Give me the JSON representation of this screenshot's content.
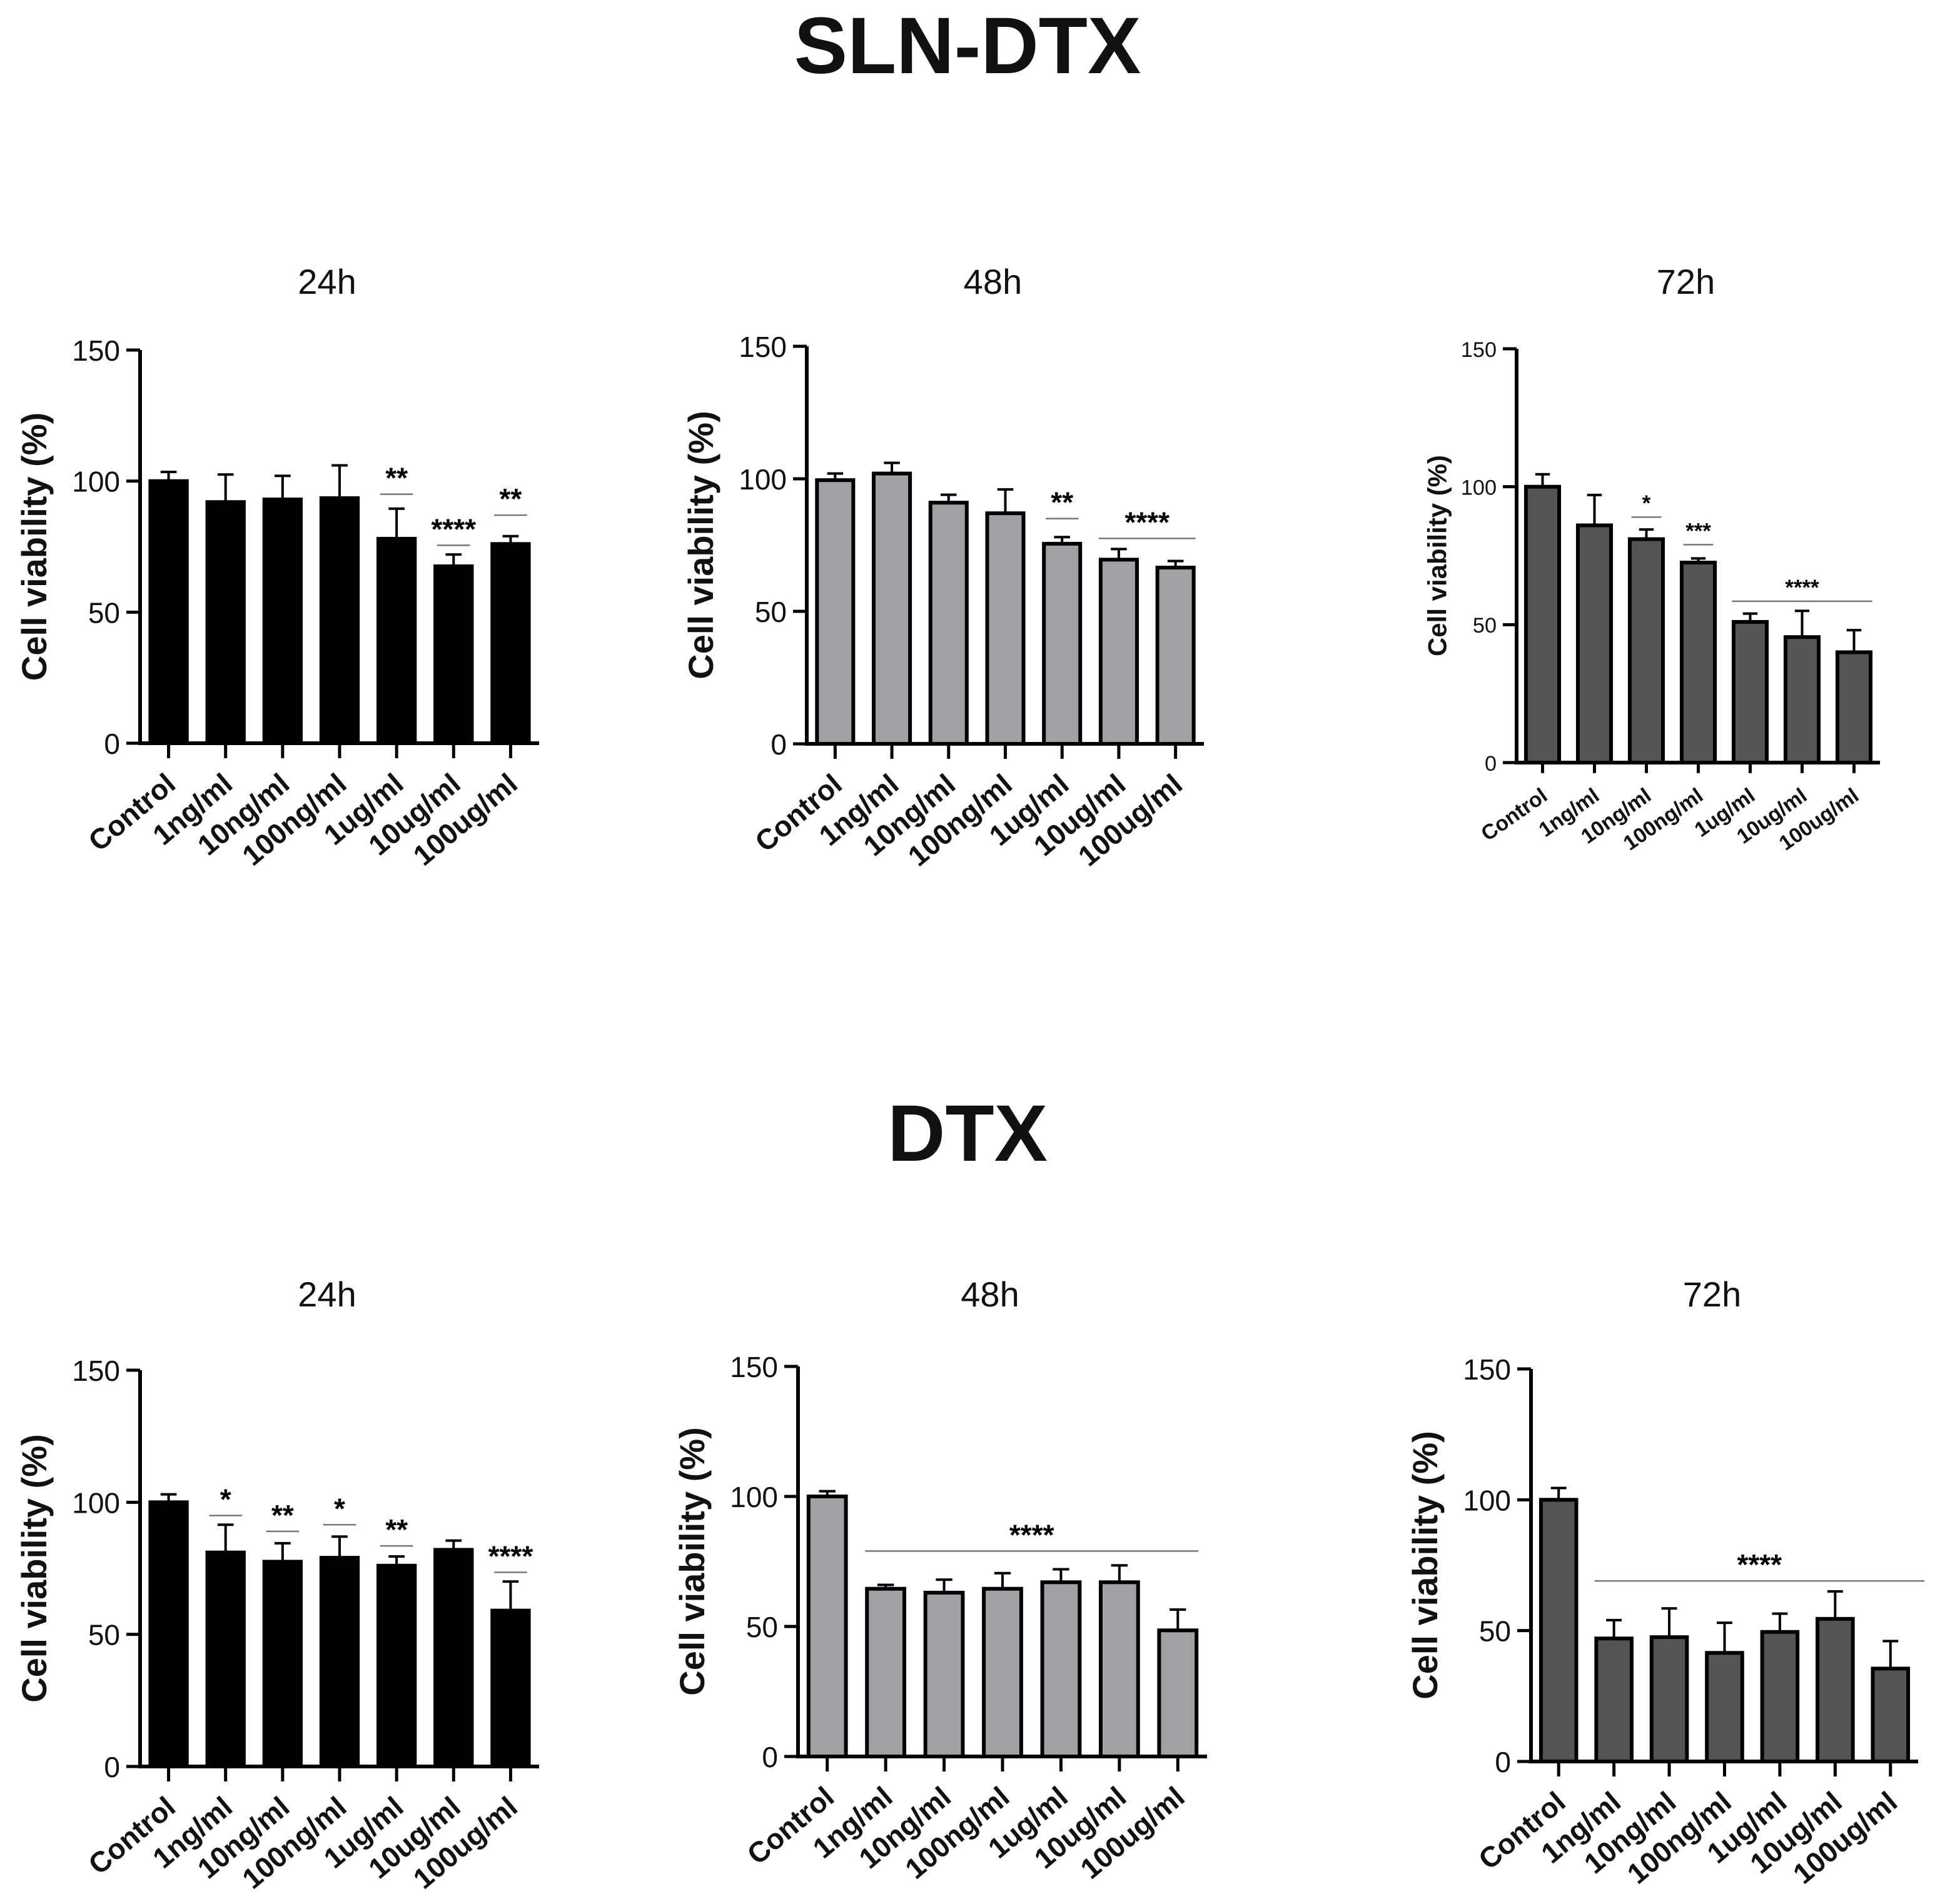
{
  "sections": [
    {
      "title": "SLN-DTX"
    },
    {
      "title": "DTX"
    }
  ],
  "chart_data": [
    {
      "type": "bar",
      "section": "SLN-DTX",
      "title": "24h",
      "ylabel": "Cell viability  (%)",
      "ylim": [
        0,
        150
      ],
      "yticks": [
        0,
        50,
        100,
        150
      ],
      "categories": [
        "Control",
        "1ng/ml",
        "10ng/ml",
        "100ng/ml",
        "1ug/ml",
        "10ug/ml",
        "100ug/ml"
      ],
      "values": [
        100,
        92,
        93,
        93.5,
        78,
        67.5,
        76
      ],
      "errors": [
        3.5,
        10.5,
        9,
        12.5,
        11.5,
        4.5,
        3
      ],
      "color": "#000000",
      "annotations": [
        {
          "text": "**",
          "from": 4,
          "to": 4,
          "y": 95
        },
        {
          "text": "****",
          "from": 5,
          "to": 5,
          "y": 75.5
        },
        {
          "text": "**",
          "from": 6,
          "to": 6,
          "y": 87
        }
      ]
    },
    {
      "type": "bar",
      "section": "SLN-DTX",
      "title": "48h",
      "ylabel": "Cell viability  (%)",
      "ylim": [
        0,
        150
      ],
      "yticks": [
        0,
        50,
        100,
        150
      ],
      "categories": [
        "Control",
        "1ng/ml",
        "10ng/ml",
        "100ng/ml",
        "1ug/ml",
        "10ug/ml",
        "100ug/ml"
      ],
      "values": [
        99.5,
        102,
        91,
        87,
        75.5,
        69.5,
        66.5
      ],
      "errors": [
        2.5,
        4,
        3,
        9,
        2.5,
        4,
        2.5
      ],
      "color": "#a0a0a5",
      "annotations": [
        {
          "text": "**",
          "from": 4,
          "to": 4,
          "y": 85
        },
        {
          "text": "****",
          "from": 5,
          "to": 6,
          "y": 77.5
        }
      ]
    },
    {
      "type": "bar",
      "section": "SLN-DTX",
      "title": "72h",
      "ylabel": "Cell viability  (%)",
      "ylim": [
        0,
        150
      ],
      "yticks": [
        0,
        50,
        100,
        150
      ],
      "categories": [
        "Control",
        "1ng/ml",
        "10ng/ml",
        "100ng/ml",
        "1ug/ml",
        "10ug/ml",
        "100ug/ml"
      ],
      "values": [
        100,
        86,
        81,
        72.5,
        51,
        45.5,
        40
      ],
      "errors": [
        4.5,
        11,
        3.5,
        1.5,
        3,
        9.5,
        8
      ],
      "color": "#545454",
      "annotations": [
        {
          "text": "*",
          "from": 2,
          "to": 2,
          "y": 89
        },
        {
          "text": "***",
          "from": 3,
          "to": 3,
          "y": 79
        },
        {
          "text": "****",
          "from": 4,
          "to": 6,
          "y": 58.5
        }
      ]
    },
    {
      "type": "bar",
      "section": "DTX",
      "title": "24h",
      "ylabel": "Cell viability  (%)",
      "ylim": [
        0,
        150
      ],
      "yticks": [
        0,
        50,
        100,
        150
      ],
      "categories": [
        "Control",
        "1ng/ml",
        "10ng/ml",
        "100ng/ml",
        "1ug/ml",
        "10ug/ml",
        "100ug/ml"
      ],
      "values": [
        100,
        81,
        77.5,
        79,
        76,
        82,
        59
      ],
      "errors": [
        3,
        10.5,
        7,
        8,
        3.5,
        3.5,
        11
      ],
      "color": "#000000",
      "annotations": [
        {
          "text": "*",
          "from": 1,
          "to": 1,
          "y": 95
        },
        {
          "text": "**",
          "from": 2,
          "to": 2,
          "y": 89
        },
        {
          "text": "*",
          "from": 3,
          "to": 3,
          "y": 91.5
        },
        {
          "text": "**",
          "from": 4,
          "to": 4,
          "y": 83.5
        },
        {
          "text": "****",
          "from": 6,
          "to": 6,
          "y": 73.5
        }
      ]
    },
    {
      "type": "bar",
      "section": "DTX",
      "title": "48h",
      "ylabel": "Cell viability  (%)",
      "ylim": [
        0,
        150
      ],
      "yticks": [
        0,
        50,
        100,
        150
      ],
      "categories": [
        "Control",
        "1ng/ml",
        "10ng/ml",
        "100ng/ml",
        "1ug/ml",
        "10ug/ml",
        "100ug/ml"
      ],
      "values": [
        100,
        64.5,
        63,
        64.5,
        67,
        67,
        48.5
      ],
      "errors": [
        2,
        1.5,
        5,
        6,
        5,
        6.5,
        8
      ],
      "color": "#a0a0a5",
      "annotations": [
        {
          "text": "****",
          "from": 1,
          "to": 6,
          "y": 79
        }
      ]
    },
    {
      "type": "bar",
      "section": "DTX",
      "title": "72h",
      "ylabel": "Cell viability  (%)",
      "ylim": [
        0,
        150
      ],
      "yticks": [
        0,
        50,
        100,
        150
      ],
      "categories": [
        "Control",
        "1ng/ml",
        "10ng/ml",
        "100ng/ml",
        "1ug/ml",
        "10ug/ml",
        "100ug/ml"
      ],
      "values": [
        100,
        47,
        47.5,
        41.5,
        49.5,
        54.5,
        35.5
      ],
      "errors": [
        4.5,
        7,
        11,
        11.5,
        7,
        10.5,
        10.5
      ],
      "color": "#545454",
      "annotations": [
        {
          "text": "****",
          "from": 1,
          "to": 7,
          "y": 69
        }
      ]
    }
  ]
}
